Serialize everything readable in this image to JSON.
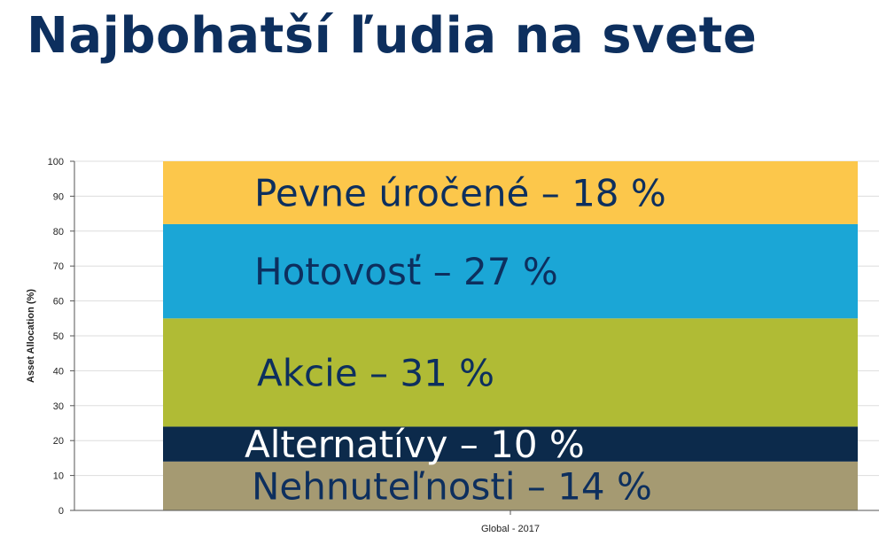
{
  "slide": {
    "title": "Najbohatší ľudia na svete"
  },
  "chart_data": {
    "type": "bar",
    "stacked": true,
    "categories": [
      "Global - 2017"
    ],
    "ylabel": "Asset Allocation (%)",
    "ylim": [
      0,
      100
    ],
    "yticks": [
      0,
      10,
      20,
      30,
      40,
      50,
      60,
      70,
      80,
      90,
      100
    ],
    "grid": true,
    "series": [
      {
        "name": "Nehnuteľnosti",
        "values": [
          14
        ],
        "label": "Nehnuteľnosti – 14 %",
        "color": "#a59a72",
        "label_color": "#0d2f5e"
      },
      {
        "name": "Alternatívy",
        "values": [
          10
        ],
        "label": "Alternatívy – 10 %",
        "color": "#0c2a4b",
        "label_color": "#ffffff"
      },
      {
        "name": "Akcie",
        "values": [
          31
        ],
        "label": "Akcie – 31 %",
        "color": "#b0bb35",
        "label_color": "#0d2f5e"
      },
      {
        "name": "Hotovosť",
        "values": [
          27
        ],
        "label": "Hotovosť – 27 %",
        "color": "#1ba6d6",
        "label_color": "#0d2f5e"
      },
      {
        "name": "Pevne úročené",
        "values": [
          18
        ],
        "label": "Pevne úročené – 18 %",
        "color": "#fcc74b",
        "label_color": "#0d2f5e"
      }
    ]
  }
}
